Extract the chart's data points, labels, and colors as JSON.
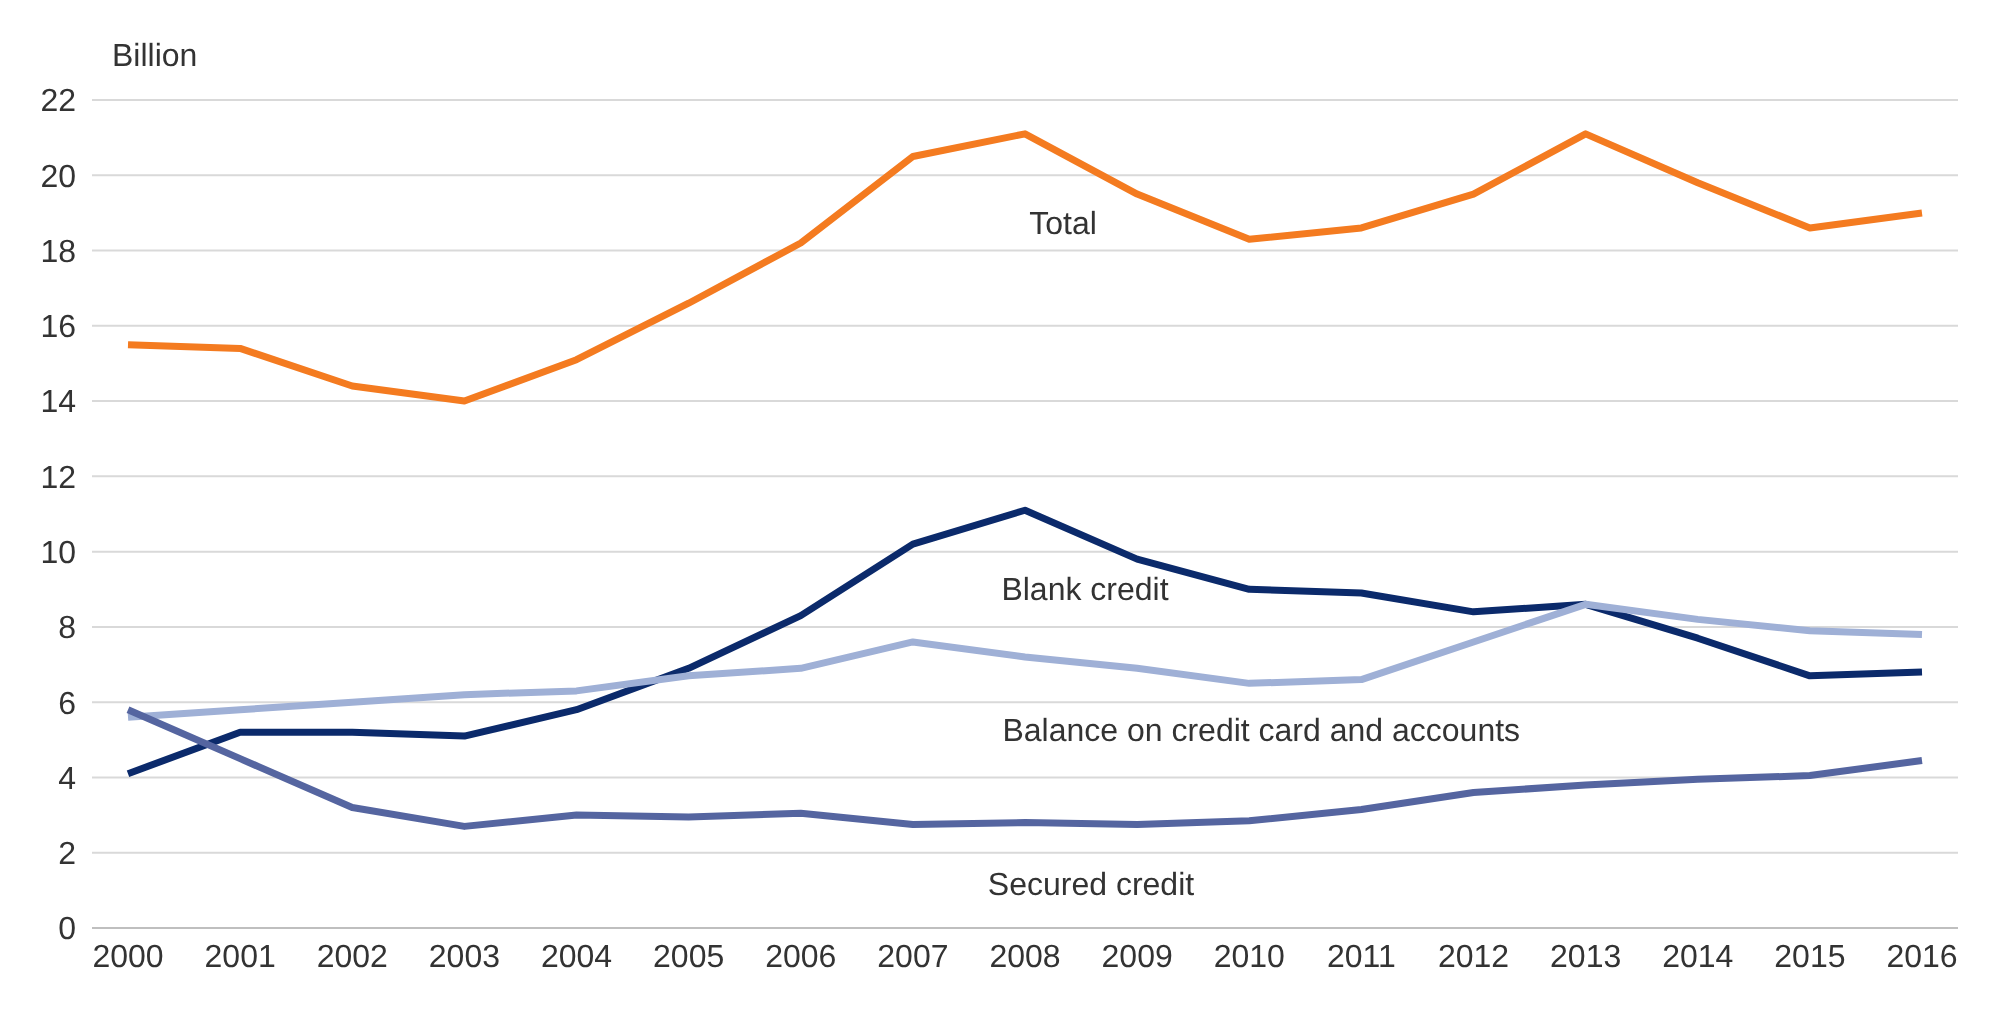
{
  "chart_data": {
    "type": "line",
    "ylabel": "Billion",
    "categories": [
      "2000",
      "2001",
      "2002",
      "2003",
      "2004",
      "2005",
      "2006",
      "2007",
      "2008",
      "2009",
      "2010",
      "2011",
      "2012",
      "2013",
      "2014",
      "2015",
      "2016"
    ],
    "series": [
      {
        "name": "Total",
        "color": "#f47b20",
        "values": [
          15.5,
          15.4,
          14.4,
          14.0,
          15.1,
          16.6,
          18.2,
          20.5,
          21.1,
          19.5,
          18.3,
          18.6,
          19.5,
          21.1,
          19.8,
          18.6,
          19.0
        ]
      },
      {
        "name": "Blank credit",
        "color": "#0b2a6b",
        "values": [
          4.1,
          5.2,
          5.2,
          5.1,
          5.8,
          6.9,
          8.3,
          10.2,
          11.1,
          9.8,
          9.0,
          8.9,
          8.4,
          8.6,
          7.7,
          6.7,
          6.8
        ]
      },
      {
        "name": "Balance on credit card and accounts",
        "color": "#9fb0d6",
        "values": [
          5.6,
          5.8,
          6.0,
          6.2,
          6.3,
          6.7,
          6.9,
          7.6,
          7.2,
          6.9,
          6.5,
          6.6,
          7.6,
          8.6,
          8.2,
          7.9,
          7.8
        ]
      },
      {
        "name": "Secured credit",
        "color": "#5565a0",
        "values": [
          5.8,
          4.5,
          3.2,
          2.7,
          3.0,
          2.95,
          3.05,
          2.75,
          2.8,
          2.75,
          2.85,
          3.15,
          3.6,
          3.8,
          3.95,
          4.05,
          4.45
        ]
      }
    ],
    "ylim": [
      0,
      22
    ],
    "yticks": [
      0,
      2,
      4,
      6,
      8,
      10,
      12,
      14,
      16,
      18,
      20,
      22
    ],
    "grid": "y",
    "legend": false,
    "marker": "none",
    "line_style": "solid"
  }
}
